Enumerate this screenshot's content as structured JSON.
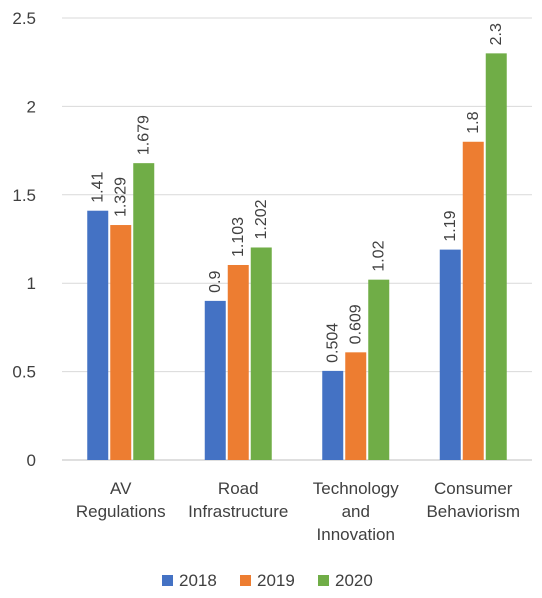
{
  "chart_data": {
    "type": "bar",
    "title": "",
    "xlabel": "",
    "ylabel": "",
    "categories": [
      [
        "AV",
        "Regulations"
      ],
      [
        "Road",
        "Infrastructure"
      ],
      [
        "Technology",
        "and",
        "Innovation"
      ],
      [
        "Consumer",
        "Behaviorism"
      ]
    ],
    "series": [
      {
        "name": "2018",
        "color": "#4472c4",
        "values": [
          1.41,
          0.9,
          0.504,
          1.19
        ],
        "labels": [
          "1.41",
          "0.9",
          "0.504",
          "1.19"
        ]
      },
      {
        "name": "2019",
        "color": "#ed7d31",
        "values": [
          1.329,
          1.103,
          0.609,
          1.8
        ],
        "labels": [
          "1.329",
          "1.103",
          "0.609",
          "1.8"
        ]
      },
      {
        "name": "2020",
        "color": "#70ad47",
        "values": [
          1.679,
          1.202,
          1.02,
          2.3
        ],
        "labels": [
          "1.679",
          "1.202",
          "1.02",
          "2.3"
        ]
      }
    ],
    "ylim": [
      0,
      2.5
    ],
    "yticks": [
      0,
      0.5,
      1,
      1.5,
      2,
      2.5
    ],
    "ytick_labels": [
      "0",
      "0.5",
      "1",
      "1.5",
      "2",
      "2.5"
    ],
    "grid": true,
    "legend_position": "bottom"
  }
}
